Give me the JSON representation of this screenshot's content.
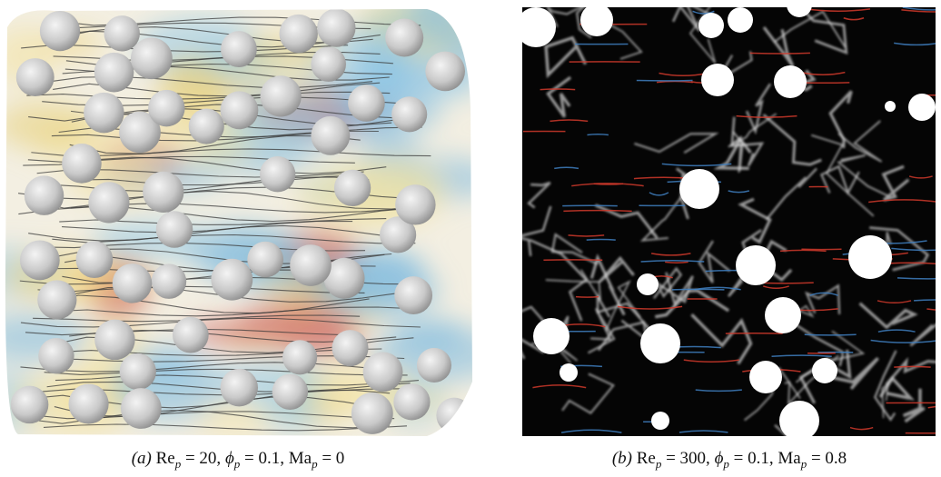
{
  "figure": {
    "panels": [
      {
        "label": "(a)",
        "terms": [
          {
            "symbol": "Re",
            "sub": "p",
            "rest": " = 20, "
          },
          {
            "symbol": "ϕ",
            "sub": "p",
            "rest": " = 0.1, "
          },
          {
            "symbol": "Ma",
            "sub": "p",
            "rest": " = 0"
          }
        ]
      },
      {
        "label": "(b)",
        "terms": [
          {
            "symbol": "Re",
            "sub": "p",
            "rest": " = 300, "
          },
          {
            "symbol": "ϕ",
            "sub": "p",
            "rest": " = 0.1, "
          },
          {
            "symbol": "Ma",
            "sub": "p",
            "rest": " = 0.8"
          }
        ]
      }
    ]
  }
}
